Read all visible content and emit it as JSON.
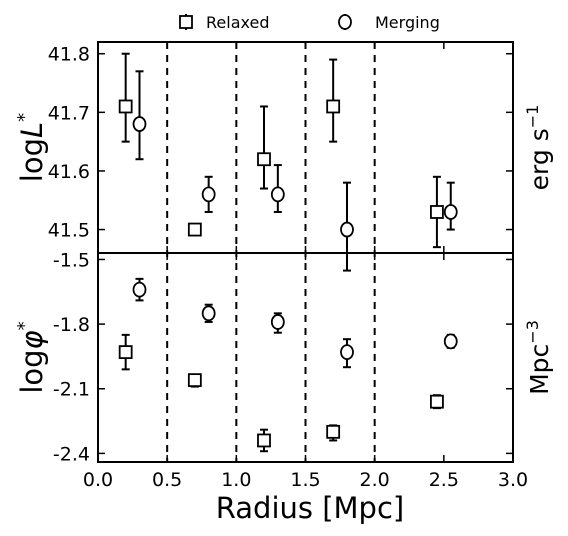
{
  "chart_data": {
    "type": "scatter",
    "xlabel": "Radius [Mpc]",
    "x_ticks": [
      "0.0",
      "0.5",
      "1.0",
      "1.5",
      "2.0",
      "2.5",
      "3.0"
    ],
    "xlim": [
      0.0,
      3.0
    ],
    "radial_bin_edges": [
      0.5,
      1.0,
      1.5,
      2.0
    ],
    "legend": {
      "placement": "top-center, outside",
      "entries": [
        {
          "label": "Relaxed",
          "marker": "square"
        },
        {
          "label": "Merging",
          "marker": "circle"
        }
      ]
    },
    "panels": [
      {
        "name": "top",
        "ylabel_prefix": "log",
        "ylabel_symbol": "L",
        "ylabel_superscript": "*",
        "unit_main": "erg s",
        "unit_superscript": "−1",
        "ylim": [
          41.46,
          41.82
        ],
        "y_ticks": [
          "41.5",
          "41.6",
          "41.7",
          "41.8"
        ],
        "series": [
          {
            "name": "Relaxed",
            "marker": "square",
            "points": [
              {
                "x": 0.2,
                "y": 41.71,
                "err_low": 0.06,
                "err_high": 0.09
              },
              {
                "x": 0.7,
                "y": 41.5
              },
              {
                "x": 1.2,
                "y": 41.62,
                "err_low": 0.05,
                "err_high": 0.09
              },
              {
                "x": 1.7,
                "y": 41.71,
                "err_low": 0.06,
                "err_high": 0.08
              },
              {
                "x": 2.45,
                "y": 41.53,
                "err_low": 0.06,
                "err_high": 0.06
              }
            ]
          },
          {
            "name": "Merging",
            "marker": "circle",
            "points": [
              {
                "x": 0.3,
                "y": 41.68,
                "err_low": 0.06,
                "err_high": 0.09
              },
              {
                "x": 0.8,
                "y": 41.56,
                "err_low": 0.03,
                "err_high": 0.03
              },
              {
                "x": 1.3,
                "y": 41.56,
                "err_low": 0.03,
                "err_high": 0.05
              },
              {
                "x": 1.8,
                "y": 41.5,
                "err_low": 0.07,
                "err_high": 0.08
              },
              {
                "x": 2.55,
                "y": 41.53,
                "err_low": 0.03,
                "err_high": 0.05
              }
            ]
          }
        ]
      },
      {
        "name": "bottom",
        "ylabel_prefix": "log",
        "ylabel_symbol": "φ",
        "ylabel_superscript": "*",
        "unit_main": "Mpc",
        "unit_superscript": "−3",
        "ylim": [
          -2.44,
          -1.47
        ],
        "y_ticks": [
          "-1.5",
          "-1.8",
          "-2.1",
          "-2.4"
        ],
        "series": [
          {
            "name": "Relaxed",
            "marker": "square",
            "points": [
              {
                "x": 0.2,
                "y": -1.93,
                "err_low": 0.08,
                "err_high": 0.08
              },
              {
                "x": 0.7,
                "y": -2.06,
                "err_low": 0.03,
                "err_high": 0.02
              },
              {
                "x": 1.2,
                "y": -2.34,
                "err_low": 0.05,
                "err_high": 0.05
              },
              {
                "x": 1.7,
                "y": -2.3,
                "err_low": 0.04,
                "err_high": 0.03
              },
              {
                "x": 2.45,
                "y": -2.16,
                "err_low": 0.03,
                "err_high": 0.03
              }
            ]
          },
          {
            "name": "Merging",
            "marker": "circle",
            "points": [
              {
                "x": 0.3,
                "y": -1.64,
                "err_low": 0.05,
                "err_high": 0.05
              },
              {
                "x": 0.8,
                "y": -1.75,
                "err_low": 0.04,
                "err_high": 0.04
              },
              {
                "x": 1.3,
                "y": -1.79,
                "err_low": 0.05,
                "err_high": 0.04
              },
              {
                "x": 1.8,
                "y": -1.93,
                "err_low": 0.07,
                "err_high": 0.06
              },
              {
                "x": 2.55,
                "y": -1.88,
                "err_low": 0.03,
                "err_high": 0.03
              }
            ]
          }
        ]
      }
    ]
  }
}
